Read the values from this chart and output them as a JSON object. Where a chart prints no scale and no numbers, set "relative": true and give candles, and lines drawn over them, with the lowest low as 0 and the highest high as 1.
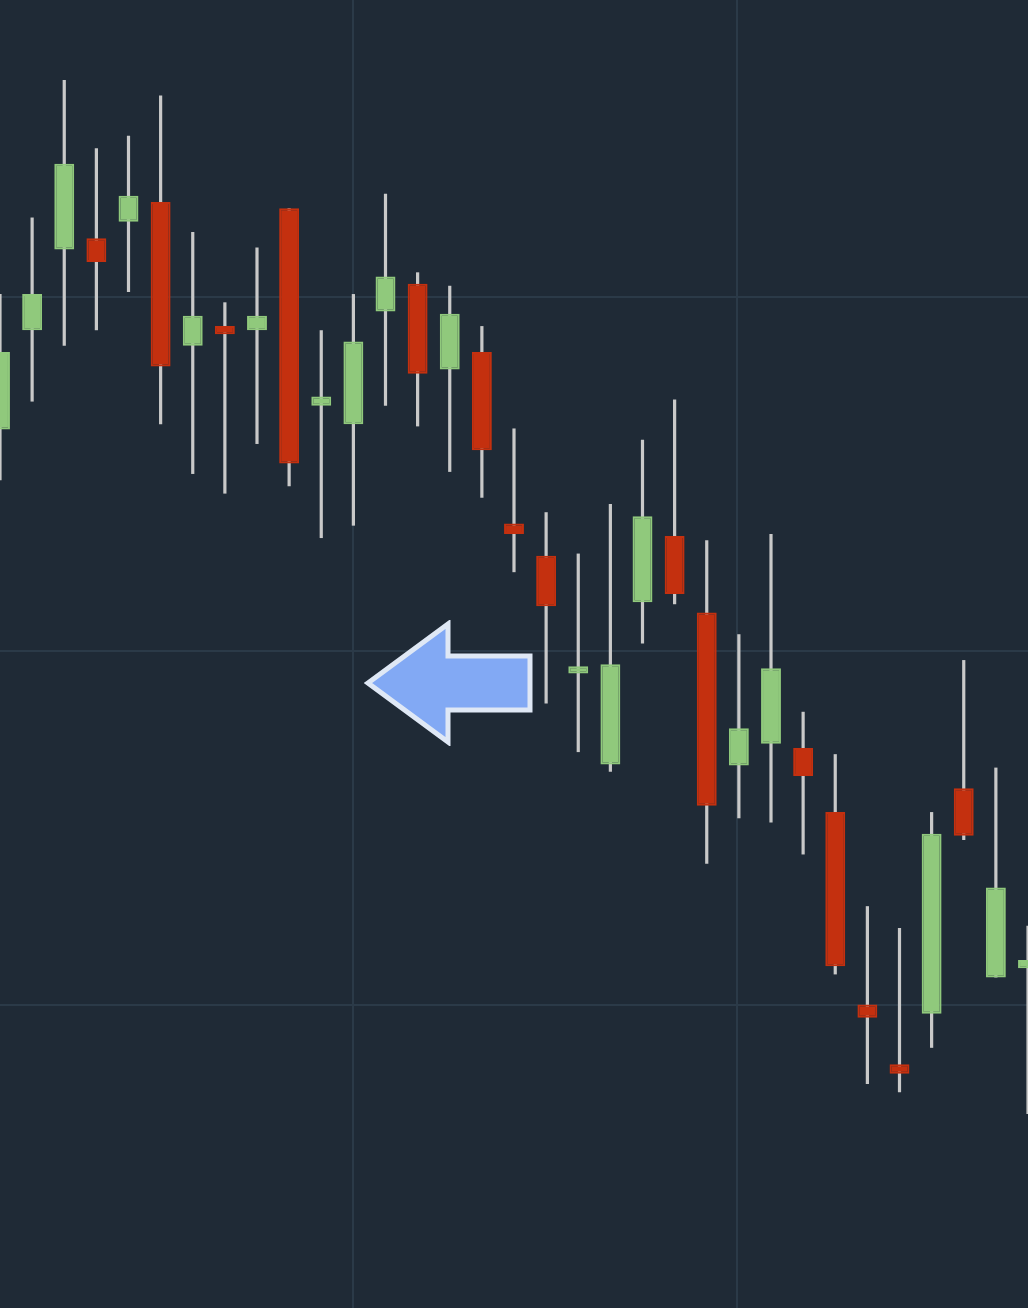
{
  "chart_data": {
    "type": "candlestick",
    "relative": true,
    "grid": true,
    "categories": [
      null,
      null,
      null,
      null,
      null,
      null,
      null,
      null,
      null,
      null,
      null,
      null,
      null,
      null,
      null,
      null,
      null,
      null,
      null,
      null,
      null,
      null,
      null,
      null,
      null,
      null,
      null,
      null,
      null,
      null,
      null,
      null,
      null
    ],
    "ohlc": [
      [
        0.662,
        0.793,
        0.613,
        0.737
      ],
      [
        0.758,
        0.867,
        0.689,
        0.793
      ],
      [
        0.836,
        1.0,
        0.743,
        0.919
      ],
      [
        0.847,
        0.934,
        0.758,
        0.824
      ],
      [
        0.863,
        0.946,
        0.795,
        0.888
      ],
      [
        0.882,
        0.985,
        0.667,
        0.723
      ],
      [
        0.743,
        0.853,
        0.619,
        0.772
      ],
      [
        0.762,
        0.785,
        0.6,
        0.754
      ],
      [
        0.758,
        0.838,
        0.648,
        0.772
      ],
      [
        0.876,
        0.876,
        0.607,
        0.629
      ],
      [
        0.685,
        0.758,
        0.557,
        0.694
      ],
      [
        0.667,
        0.793,
        0.569,
        0.747
      ],
      [
        0.776,
        0.89,
        0.685,
        0.81
      ],
      [
        0.803,
        0.814,
        0.665,
        0.716
      ],
      [
        0.72,
        0.801,
        0.621,
        0.774
      ],
      [
        0.737,
        0.762,
        0.596,
        0.642
      ],
      [
        0.571,
        0.663,
        0.524,
        0.561
      ],
      [
        0.54,
        0.582,
        0.397,
        0.491
      ],
      [
        0.426,
        0.542,
        0.35,
        0.433
      ],
      [
        0.338,
        0.59,
        0.331,
        0.435
      ],
      [
        0.495,
        0.652,
        0.455,
        0.578
      ],
      [
        0.559,
        0.691,
        0.493,
        0.503
      ],
      [
        0.485,
        0.555,
        0.242,
        0.298
      ],
      [
        0.337,
        0.464,
        0.286,
        0.373
      ],
      [
        0.358,
        0.561,
        0.282,
        0.431
      ],
      [
        0.354,
        0.389,
        0.251,
        0.327
      ],
      [
        0.292,
        0.348,
        0.135,
        0.143
      ],
      [
        0.106,
        0.201,
        0.029,
        0.093
      ],
      [
        0.048,
        0.18,
        0.021,
        0.039
      ],
      [
        0.097,
        0.292,
        0.064,
        0.271
      ],
      [
        0.315,
        0.439,
        0.265,
        0.269
      ],
      [
        0.132,
        0.335,
        0.132,
        0.219
      ],
      [
        0.141,
        0.182,
        0.0,
        0.149
      ]
    ],
    "colors": [
      "#90c97c",
      "#90c97c",
      "#90c97c",
      "#c4300f",
      "#90c97c",
      "#c4300f",
      "#90c97c",
      "#c4300f",
      "#90c97c",
      "#c4300f",
      "#90c97c",
      "#90c97c",
      "#90c97c",
      "#c4300f",
      "#90c97c",
      "#c4300f",
      "#c4300f",
      "#c4300f",
      "#90c97c",
      "#90c97c",
      "#90c97c",
      "#c4300f",
      "#c4300f",
      "#90c97c",
      "#90c97c",
      "#c4300f",
      "#c4300f",
      "#c4300f",
      "#c4300f",
      "#90c97c",
      "#c4300f",
      "#90c97c",
      "#90c97c"
    ]
  }
}
